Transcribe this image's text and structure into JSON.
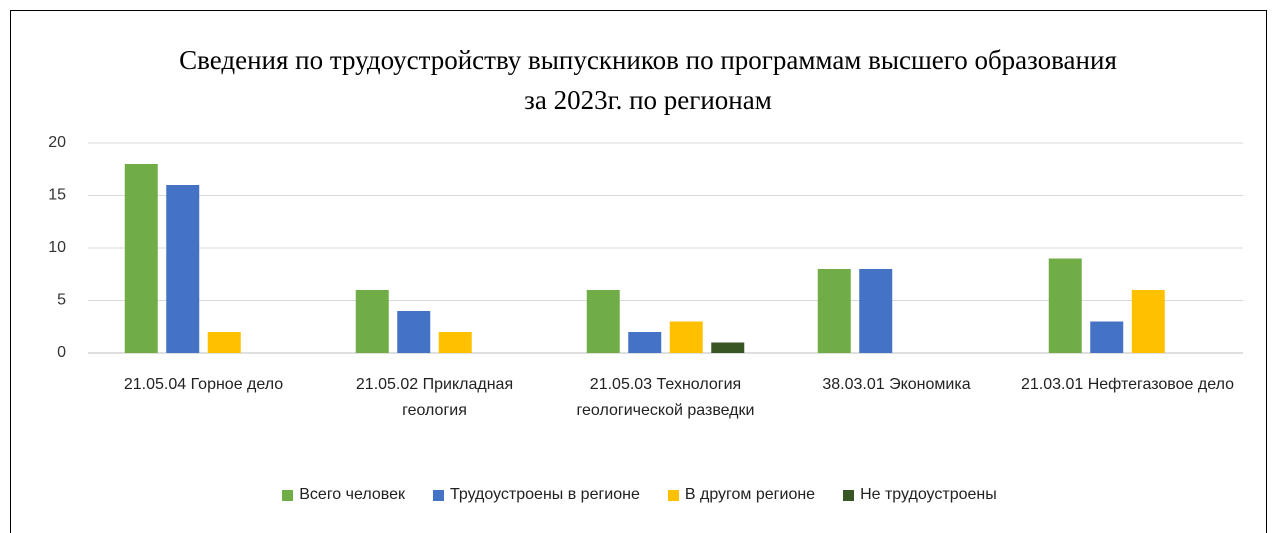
{
  "chart_data": {
    "type": "bar",
    "title": "Сведения по трудоустройству выпускников по программам высшего образования за 2023г. по регионам",
    "categories": [
      "21.05.04 Горное дело",
      "21.05.02 Прикладная геология",
      "21.05.03 Технология геологической разведки",
      "38.03.01 Экономика",
      "21.03.01 Нефтегазовое дело"
    ],
    "series": [
      {
        "name": "Всего человек",
        "color": "#70ad47",
        "values": [
          18,
          6,
          6,
          8,
          9
        ]
      },
      {
        "name": "Трудоустроены в регионе",
        "color": "#4472c4",
        "values": [
          16,
          4,
          2,
          8,
          3
        ]
      },
      {
        "name": "В другом регионе",
        "color": "#ffc000",
        "values": [
          2,
          2,
          3,
          null,
          6
        ]
      },
      {
        "name": "Не трудоустроены",
        "color": "#375623",
        "values": [
          null,
          null,
          1,
          null,
          null
        ]
      }
    ],
    "ylim": [
      0,
      20
    ],
    "yticks": [
      0,
      5,
      10,
      15,
      20
    ],
    "grid": true,
    "legend": "bottom"
  }
}
